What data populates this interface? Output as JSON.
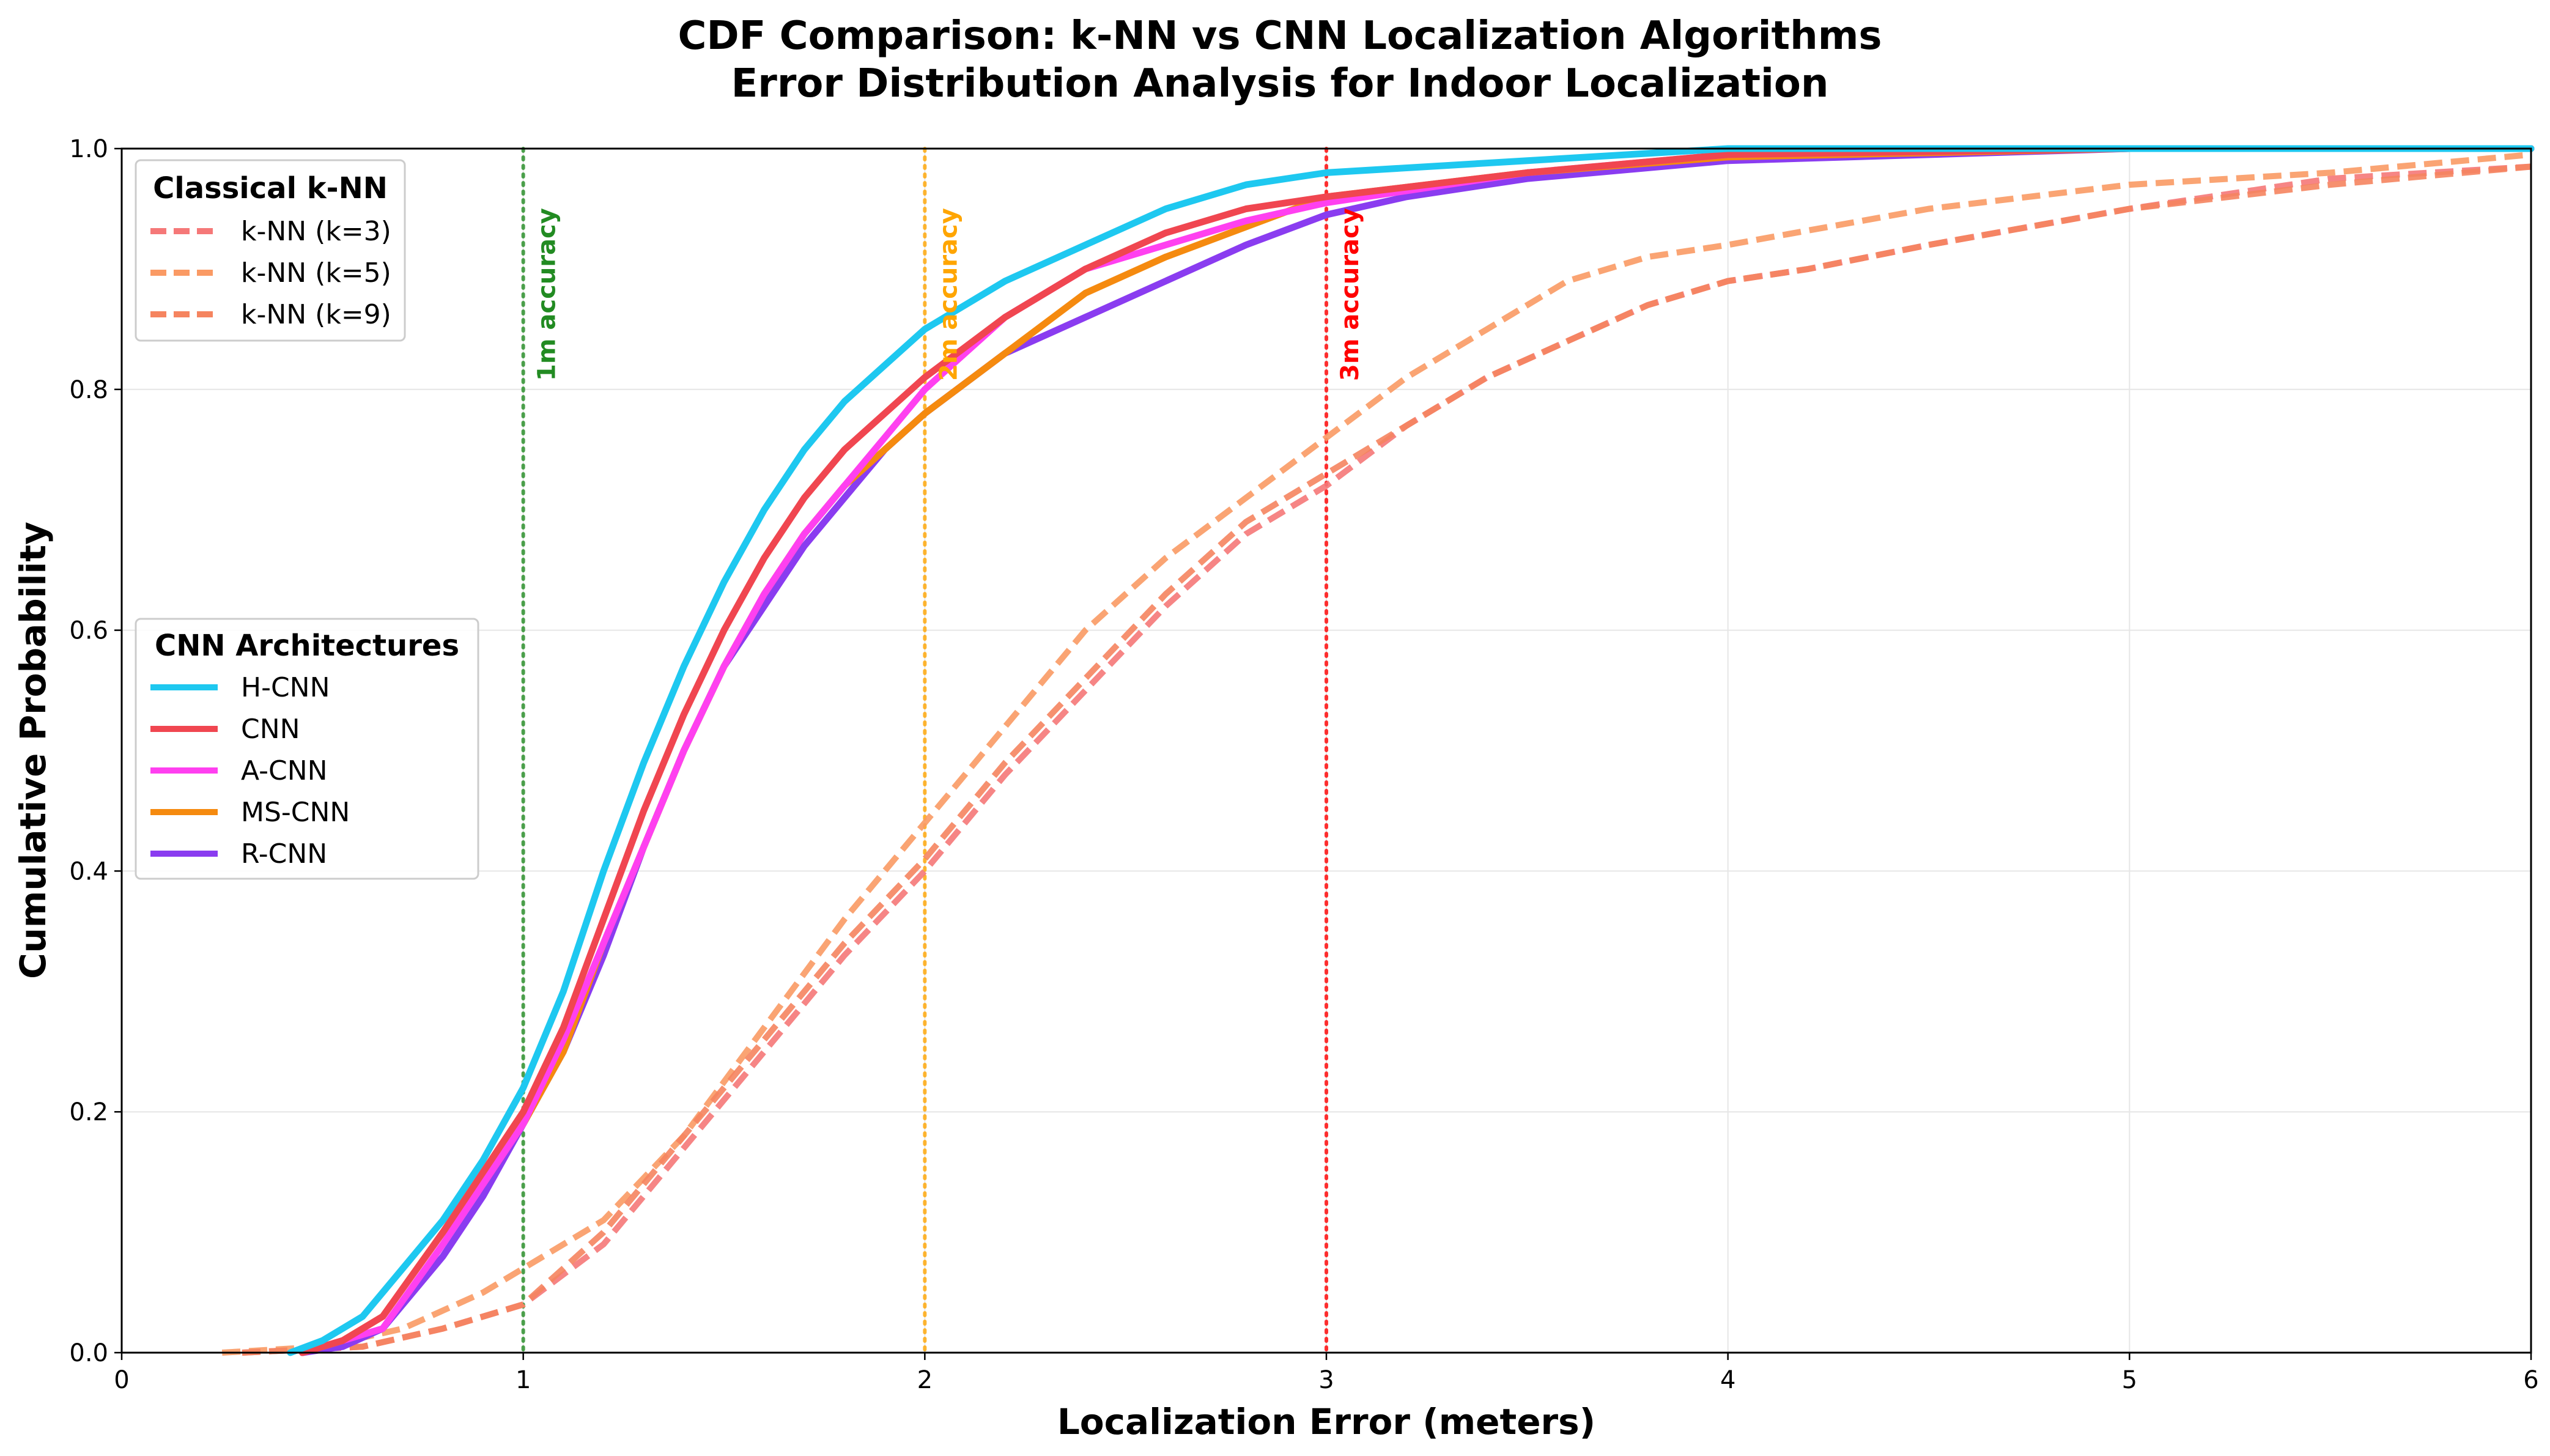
{
  "chart_data": {
    "type": "line",
    "title": "CDF Comparison: k-NN vs CNN Localization Algorithms",
    "subtitle": "Error Distribution Analysis for Indoor Localization",
    "xlabel": "Localization Error (meters)",
    "ylabel": "Cumulative Probability",
    "xlim": [
      0,
      6
    ],
    "ylim": [
      0,
      1.0
    ],
    "x_ticks": [
      "0",
      "1",
      "2",
      "3",
      "4",
      "5",
      "6"
    ],
    "y_ticks": [
      "0.0",
      "0.2",
      "0.4",
      "0.6",
      "0.8",
      "1.0"
    ],
    "grid": true,
    "legends": [
      {
        "title": "Classical k-NN",
        "placement": "upper-left",
        "entries": [
          "k-NN (k=3)",
          "k-NN (k=5)",
          "k-NN (k=9)"
        ]
      },
      {
        "title": "CNN Architectures",
        "placement": "center-left",
        "entries": [
          "H-CNN",
          "CNN",
          "A-CNN",
          "MS-CNN",
          "R-CNN"
        ]
      }
    ],
    "reference_lines": [
      {
        "x": 1,
        "label": "1m accuracy",
        "color": "#228b22"
      },
      {
        "x": 2,
        "label": "2m accuracy",
        "color": "#ffa500"
      },
      {
        "x": 3,
        "label": "3m accuracy",
        "color": "#ff0000"
      }
    ],
    "series": [
      {
        "name": "H-CNN",
        "color": "#1ec8f0",
        "dash": false,
        "x": [
          0.42,
          0.5,
          0.6,
          0.7,
          0.8,
          0.9,
          1.0,
          1.1,
          1.2,
          1.3,
          1.4,
          1.5,
          1.6,
          1.7,
          1.8,
          1.9,
          2.0,
          2.2,
          2.4,
          2.6,
          2.8,
          3.0,
          3.5,
          4.0,
          5.0,
          6.0
        ],
        "y": [
          0.0,
          0.01,
          0.03,
          0.07,
          0.11,
          0.16,
          0.22,
          0.3,
          0.4,
          0.49,
          0.57,
          0.64,
          0.7,
          0.75,
          0.79,
          0.82,
          0.85,
          0.89,
          0.92,
          0.95,
          0.97,
          0.98,
          0.99,
          1.0,
          1.0,
          1.0
        ]
      },
      {
        "name": "CNN",
        "color": "#f04650",
        "dash": false,
        "x": [
          0.45,
          0.55,
          0.65,
          0.8,
          0.9,
          1.0,
          1.1,
          1.2,
          1.3,
          1.4,
          1.5,
          1.6,
          1.7,
          1.8,
          1.9,
          2.0,
          2.2,
          2.4,
          2.6,
          2.8,
          3.0,
          3.5,
          4.0,
          5.0,
          6.0
        ],
        "y": [
          0.0,
          0.01,
          0.03,
          0.1,
          0.15,
          0.2,
          0.27,
          0.36,
          0.45,
          0.53,
          0.6,
          0.66,
          0.71,
          0.75,
          0.78,
          0.81,
          0.86,
          0.9,
          0.93,
          0.95,
          0.96,
          0.98,
          0.995,
          1.0,
          1.0
        ]
      },
      {
        "name": "A-CNN",
        "color": "#ff40f0",
        "dash": false,
        "x": [
          0.45,
          0.55,
          0.65,
          0.8,
          0.9,
          1.0,
          1.1,
          1.2,
          1.3,
          1.4,
          1.5,
          1.6,
          1.7,
          1.8,
          1.9,
          2.0,
          2.2,
          2.4,
          2.6,
          2.8,
          3.0,
          3.5,
          4.0,
          5.0,
          6.0
        ],
        "y": [
          0.0,
          0.01,
          0.02,
          0.09,
          0.14,
          0.19,
          0.26,
          0.34,
          0.42,
          0.5,
          0.57,
          0.63,
          0.68,
          0.72,
          0.76,
          0.8,
          0.86,
          0.9,
          0.92,
          0.94,
          0.955,
          0.98,
          0.995,
          1.0,
          1.0
        ]
      },
      {
        "name": "MS-CNN",
        "color": "#f58a0f",
        "dash": false,
        "x": [
          0.45,
          0.55,
          0.65,
          0.8,
          0.9,
          1.0,
          1.1,
          1.2,
          1.3,
          1.4,
          1.5,
          1.6,
          1.7,
          1.8,
          1.9,
          2.0,
          2.2,
          2.4,
          2.6,
          2.8,
          3.0,
          3.5,
          4.0,
          5.0,
          6.0
        ],
        "y": [
          0.0,
          0.01,
          0.03,
          0.1,
          0.14,
          0.19,
          0.25,
          0.34,
          0.42,
          0.5,
          0.57,
          0.63,
          0.68,
          0.72,
          0.75,
          0.78,
          0.83,
          0.88,
          0.91,
          0.935,
          0.96,
          0.98,
          0.993,
          1.0,
          1.0
        ]
      },
      {
        "name": "R-CNN",
        "color": "#8a3cf0",
        "dash": false,
        "x": [
          0.45,
          0.55,
          0.65,
          0.8,
          0.9,
          1.0,
          1.1,
          1.2,
          1.3,
          1.4,
          1.5,
          1.6,
          1.7,
          1.8,
          1.9,
          2.0,
          2.2,
          2.4,
          2.6,
          2.8,
          3.0,
          3.2,
          3.5,
          4.0,
          5.0,
          6.0
        ],
        "y": [
          0.0,
          0.005,
          0.02,
          0.08,
          0.13,
          0.19,
          0.25,
          0.33,
          0.42,
          0.5,
          0.57,
          0.62,
          0.67,
          0.71,
          0.75,
          0.78,
          0.83,
          0.86,
          0.89,
          0.92,
          0.945,
          0.96,
          0.975,
          0.99,
          1.0,
          1.0
        ]
      },
      {
        "name": "k-NN (k=3)",
        "color": "#f57878",
        "dash": true,
        "x": [
          0.3,
          0.6,
          0.8,
          1.0,
          1.2,
          1.4,
          1.6,
          1.8,
          2.0,
          2.2,
          2.4,
          2.6,
          2.8,
          3.0,
          3.2,
          3.4,
          3.6,
          3.8,
          4.0,
          4.2,
          4.5,
          5.0,
          5.5,
          6.0
        ],
        "y": [
          0.0,
          0.005,
          0.02,
          0.04,
          0.09,
          0.17,
          0.25,
          0.33,
          0.4,
          0.48,
          0.55,
          0.62,
          0.68,
          0.72,
          0.77,
          0.81,
          0.84,
          0.87,
          0.89,
          0.9,
          0.92,
          0.95,
          0.975,
          0.985
        ]
      },
      {
        "name": "k-NN (k=5)",
        "color": "#fa9a64",
        "dash": true,
        "x": [
          0.25,
          0.5,
          0.7,
          0.9,
          1.0,
          1.2,
          1.4,
          1.6,
          1.8,
          2.0,
          2.2,
          2.4,
          2.6,
          2.8,
          3.0,
          3.2,
          3.4,
          3.6,
          3.8,
          4.0,
          4.5,
          5.0,
          5.5,
          6.0
        ],
        "y": [
          0.0,
          0.005,
          0.02,
          0.05,
          0.07,
          0.11,
          0.18,
          0.27,
          0.36,
          0.44,
          0.52,
          0.6,
          0.66,
          0.71,
          0.76,
          0.81,
          0.85,
          0.89,
          0.91,
          0.92,
          0.95,
          0.97,
          0.98,
          0.995
        ]
      },
      {
        "name": "k-NN (k=9)",
        "color": "#f5845f",
        "dash": true,
        "x": [
          0.3,
          0.6,
          0.8,
          1.0,
          1.2,
          1.4,
          1.6,
          1.8,
          2.0,
          2.2,
          2.4,
          2.6,
          2.8,
          3.0,
          3.2,
          3.4,
          3.6,
          3.8,
          4.0,
          4.2,
          4.5,
          5.0,
          5.5,
          6.0
        ],
        "y": [
          0.0,
          0.005,
          0.02,
          0.04,
          0.1,
          0.18,
          0.26,
          0.34,
          0.41,
          0.49,
          0.56,
          0.63,
          0.69,
          0.73,
          0.77,
          0.81,
          0.84,
          0.87,
          0.89,
          0.9,
          0.92,
          0.95,
          0.97,
          0.985
        ]
      }
    ]
  }
}
